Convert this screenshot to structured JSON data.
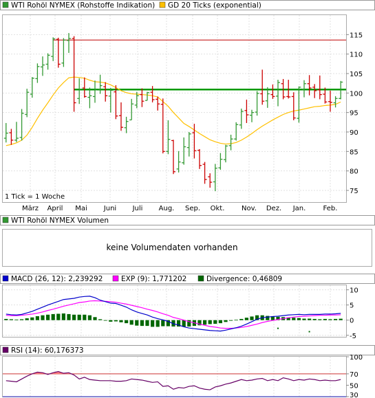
{
  "price_panel": {
    "legend": [
      {
        "label": "WTI Rohöl NYMEX (Rohstoffe Indikation)",
        "color": "#339933"
      },
      {
        "label": "GD 20 Ticks (exponential)",
        "color": "#ffc000"
      }
    ],
    "tick_note": "1 Tick = 1 Woche"
  },
  "volume_panel": {
    "legend": [
      {
        "label": "WTI Rohöl NYMEX Volumen",
        "color": "#339933"
      }
    ],
    "message": "keine Volumendaten vorhanden"
  },
  "macd_panel": {
    "legend": [
      {
        "label": "MACD (26, 12): 2,239292",
        "color": "#0000cc"
      },
      {
        "label": "EXP (9): 1,771202",
        "color": "#ff00ff"
      },
      {
        "label": "Divergence: 0,46809",
        "color": "#006600"
      }
    ]
  },
  "rsi_panel": {
    "legend": [
      {
        "label": "RSI (14): 60,176373",
        "color": "#660066"
      }
    ]
  },
  "chart_data": [
    {
      "type": "ohlc",
      "x_labels": [
        "März",
        "April",
        "Mai",
        "Juni",
        "Juli",
        "Aug.",
        "Sep.",
        "Okt.",
        "Nov.",
        "Dez.",
        "Jan.",
        "Feb."
      ],
      "y_ticks": [
        75,
        80,
        85,
        90,
        95,
        100,
        105,
        110,
        115
      ],
      "ylim": [
        72,
        120
      ],
      "grid": true,
      "colors": {
        "up": "#339933",
        "down": "#cc0000",
        "ema": "#ffc000",
        "resistance": "#cc3333",
        "support": "#009900"
      },
      "horizontal_lines": [
        {
          "name": "resistance",
          "value": 113.6
        },
        {
          "name": "support",
          "value": 100.9
        }
      ],
      "ohlc": [
        [
          88.4,
          92.3,
          87.3,
          89.7
        ],
        [
          89.8,
          90.8,
          86.7,
          87.9
        ],
        [
          87.9,
          92.6,
          87.4,
          88.4
        ],
        [
          88.6,
          95.9,
          87.8,
          94.8
        ],
        [
          94.5,
          101.1,
          93.8,
          100.2
        ],
        [
          99.7,
          104.1,
          98.8,
          103.8
        ],
        [
          103.7,
          107.6,
          102.6,
          106.8
        ],
        [
          106.7,
          109.4,
          104.4,
          107.2
        ],
        [
          107.4,
          110.2,
          106.0,
          109.7
        ],
        [
          109.4,
          114.3,
          108.2,
          113.9
        ],
        [
          113.8,
          114.2,
          106.5,
          107.4
        ],
        [
          107.7,
          114.1,
          106.7,
          113.6
        ],
        [
          113.5,
          115.4,
          110.3,
          114.0
        ],
        [
          114.0,
          114.6,
          95.2,
          97.5
        ],
        [
          98.6,
          103.8,
          97.2,
          101.0
        ],
        [
          101.3,
          104.0,
          98.8,
          99.1
        ],
        [
          98.9,
          101.4,
          96.1,
          99.3
        ],
        [
          99.1,
          103.2,
          97.5,
          100.8
        ],
        [
          100.9,
          104.7,
          99.8,
          101.9
        ],
        [
          101.6,
          102.8,
          97.8,
          99.3
        ],
        [
          99.2,
          101.3,
          95.0,
          100.7
        ],
        [
          100.3,
          102.0,
          93.3,
          94.1
        ],
        [
          94.2,
          97.6,
          90.3,
          91.2
        ],
        [
          91.1,
          93.9,
          89.7,
          92.7
        ],
        [
          93.1,
          98.5,
          93.1,
          97.2
        ],
        [
          96.9,
          100.3,
          96.1,
          99.3
        ],
        [
          99.6,
          101.2,
          96.4,
          97.9
        ],
        [
          98.1,
          100.3,
          98.1,
          100.1
        ],
        [
          100.2,
          101.8,
          97.6,
          98.3
        ],
        [
          98.4,
          99.1,
          95.5,
          97.2
        ],
        [
          97.1,
          98.6,
          84.5,
          85.0
        ],
        [
          85.0,
          93.0,
          84.3,
          88.1
        ],
        [
          87.8,
          88.0,
          79.2,
          79.8
        ],
        [
          80.5,
          85.1,
          79.6,
          82.3
        ],
        [
          82.1,
          88.6,
          81.6,
          86.2
        ],
        [
          86.0,
          90.0,
          83.7,
          89.5
        ],
        [
          89.8,
          92.1,
          83.2,
          85.2
        ],
        [
          85.3,
          85.6,
          80.5,
          81.4
        ],
        [
          81.7,
          82.3,
          76.7,
          77.8
        ],
        [
          78.5,
          79.4,
          75.7,
          77.1
        ],
        [
          77.2,
          81.8,
          74.8,
          80.7
        ],
        [
          80.8,
          84.6,
          80.3,
          83.0
        ],
        [
          82.9,
          86.7,
          82.2,
          86.4
        ],
        [
          86.5,
          89.3,
          85.3,
          88.2
        ],
        [
          88.2,
          92.5,
          87.8,
          91.9
        ],
        [
          91.8,
          96.0,
          90.8,
          95.3
        ],
        [
          95.5,
          98.3,
          92.3,
          94.4
        ],
        [
          94.3,
          95.7,
          92.5,
          95.0
        ],
        [
          95.1,
          100.5,
          94.2,
          99.9
        ],
        [
          99.8,
          106.0,
          97.0,
          97.9
        ],
        [
          98.0,
          101.5,
          96.2,
          99.8
        ],
        [
          99.6,
          102.2,
          98.5,
          99.1
        ],
        [
          99.2,
          103.4,
          96.6,
          102.7
        ],
        [
          102.4,
          103.6,
          98.4,
          99.0
        ],
        [
          99.1,
          103.4,
          98.6,
          99.0
        ],
        [
          99.1,
          100.2,
          93.0,
          93.6
        ],
        [
          93.5,
          101.7,
          92.4,
          101.5
        ],
        [
          100.9,
          103.3,
          98.9,
          102.4
        ],
        [
          102.4,
          104.6,
          99.4,
          101.3
        ],
        [
          101.5,
          102.3,
          98.7,
          100.6
        ],
        [
          100.8,
          104.5,
          98.4,
          99.6
        ],
        [
          99.7,
          101.4,
          97.3,
          97.7
        ],
        [
          97.8,
          100.6,
          95.2,
          97.6
        ],
        [
          97.5,
          99.2,
          96.3,
          98.6
        ],
        [
          98.6,
          103.1,
          98.4,
          102.8
        ]
      ],
      "ema": [
        86.5,
        86.8,
        87.2,
        87.9,
        89.2,
        91.2,
        93.5,
        95.6,
        97.5,
        99.5,
        101.3,
        102.7,
        103.9,
        104.1,
        104.0,
        103.8,
        103.3,
        102.9,
        102.8,
        102.6,
        102.1,
        101.4,
        100.6,
        100.1,
        99.8,
        99.7,
        99.6,
        99.5,
        99.3,
        99.0,
        97.8,
        96.6,
        95.0,
        93.6,
        92.2,
        91.4,
        90.5,
        89.6,
        88.8,
        88.0,
        87.5,
        87.1,
        86.9,
        87.0,
        87.3,
        87.9,
        88.7,
        89.6,
        90.6,
        91.5,
        92.3,
        93.1,
        93.8,
        94.5,
        95.0,
        95.4,
        95.6,
        95.9,
        96.2,
        96.5,
        96.6,
        96.8,
        96.9,
        97.1,
        97.7
      ]
    },
    {
      "type": "macd",
      "ylim": [
        -5.5,
        11.5
      ],
      "y_ticks": [
        -5,
        0,
        5,
        10
      ],
      "series": [
        {
          "name": "MACD (26, 12)",
          "color": "#0000cc",
          "values": [
            2.0,
            1.8,
            1.7,
            1.9,
            2.4,
            2.9,
            3.6,
            4.3,
            5.0,
            5.6,
            6.2,
            6.8,
            7.0,
            7.2,
            7.6,
            7.8,
            7.9,
            7.4,
            6.6,
            6.1,
            5.6,
            5.5,
            4.9,
            4.3,
            3.4,
            2.7,
            2.2,
            1.7,
            1.0,
            0.5,
            0.1,
            -0.4,
            -1.2,
            -1.6,
            -2.2,
            -2.6,
            -2.8,
            -3.0,
            -3.2,
            -3.4,
            -3.5,
            -3.6,
            -3.3,
            -2.9,
            -2.5,
            -2.0,
            -1.3,
            -0.5,
            0.3,
            0.8,
            1.0,
            1.2,
            1.3,
            1.5,
            1.7,
            1.8,
            1.9,
            1.8,
            1.9,
            1.9,
            1.9,
            2.0,
            2.0,
            2.1,
            2.24
          ]
        },
        {
          "name": "EXP (9)",
          "color": "#ff00ff",
          "values": [
            1.6,
            1.5,
            1.5,
            1.6,
            1.8,
            2.0,
            2.3,
            2.7,
            3.2,
            3.6,
            4.1,
            4.6,
            5.0,
            5.4,
            5.8,
            6.0,
            6.3,
            6.4,
            6.3,
            6.2,
            6.1,
            5.9,
            5.6,
            5.3,
            4.9,
            4.5,
            4.1,
            3.6,
            3.2,
            2.7,
            2.1,
            1.6,
            0.9,
            0.5,
            0.0,
            -0.5,
            -0.9,
            -1.3,
            -1.7,
            -2.1,
            -2.3,
            -2.6,
            -2.7,
            -2.7,
            -2.6,
            -2.4,
            -2.1,
            -1.7,
            -1.3,
            -0.8,
            -0.4,
            -0.1,
            0.2,
            0.5,
            0.8,
            1.0,
            1.2,
            1.3,
            1.4,
            1.5,
            1.6,
            1.6,
            1.7,
            1.7,
            1.77
          ]
        },
        {
          "name": "Divergence",
          "color": "#006600",
          "values": [
            0.4,
            0.3,
            0.2,
            0.3,
            0.6,
            0.9,
            1.3,
            1.6,
            1.8,
            2.0,
            2.1,
            2.2,
            2.0,
            1.8,
            1.8,
            1.8,
            1.6,
            1.0,
            0.3,
            -0.1,
            -0.5,
            -0.4,
            -0.7,
            -1.0,
            -1.5,
            -1.8,
            -1.9,
            -1.9,
            -2.2,
            -2.2,
            -2.0,
            -2.0,
            -2.1,
            -2.1,
            -2.2,
            -2.1,
            -1.9,
            -1.7,
            -1.5,
            -1.3,
            -1.2,
            -1.0,
            -0.6,
            -0.2,
            0.1,
            0.4,
            0.8,
            1.2,
            1.6,
            1.6,
            1.4,
            1.3,
            1.1,
            1.0,
            0.9,
            0.8,
            0.7,
            0.5,
            0.5,
            0.4,
            0.3,
            0.4,
            0.3,
            0.4,
            0.47
          ]
        }
      ],
      "dots": [
        {
          "x_index": 52,
          "value": -2.7
        },
        {
          "x_index": 58,
          "value": -3.8
        }
      ]
    },
    {
      "type": "line",
      "name": "RSI (14)",
      "ylim": [
        30,
        100
      ],
      "y_ticks": [
        30,
        50,
        70,
        100
      ],
      "reference_lines": [
        {
          "value": 70,
          "color": "#cc3333"
        },
        {
          "value": 30,
          "color": "#3333cc"
        }
      ],
      "overbought_fill": "#ff8080",
      "values": [
        58,
        57,
        56,
        61,
        66,
        70,
        73,
        72,
        69,
        72,
        74,
        71,
        72,
        68,
        61,
        64,
        60,
        59,
        58,
        58,
        58,
        57,
        57,
        58,
        61,
        60,
        59,
        57,
        55,
        56,
        48,
        49,
        43,
        46,
        45,
        48,
        49,
        45,
        43,
        42,
        47,
        49,
        52,
        54,
        57,
        60,
        58,
        59,
        61,
        62,
        58,
        60,
        58,
        63,
        61,
        58,
        60,
        59,
        61,
        60,
        58,
        59,
        58,
        58,
        60
      ]
    }
  ]
}
